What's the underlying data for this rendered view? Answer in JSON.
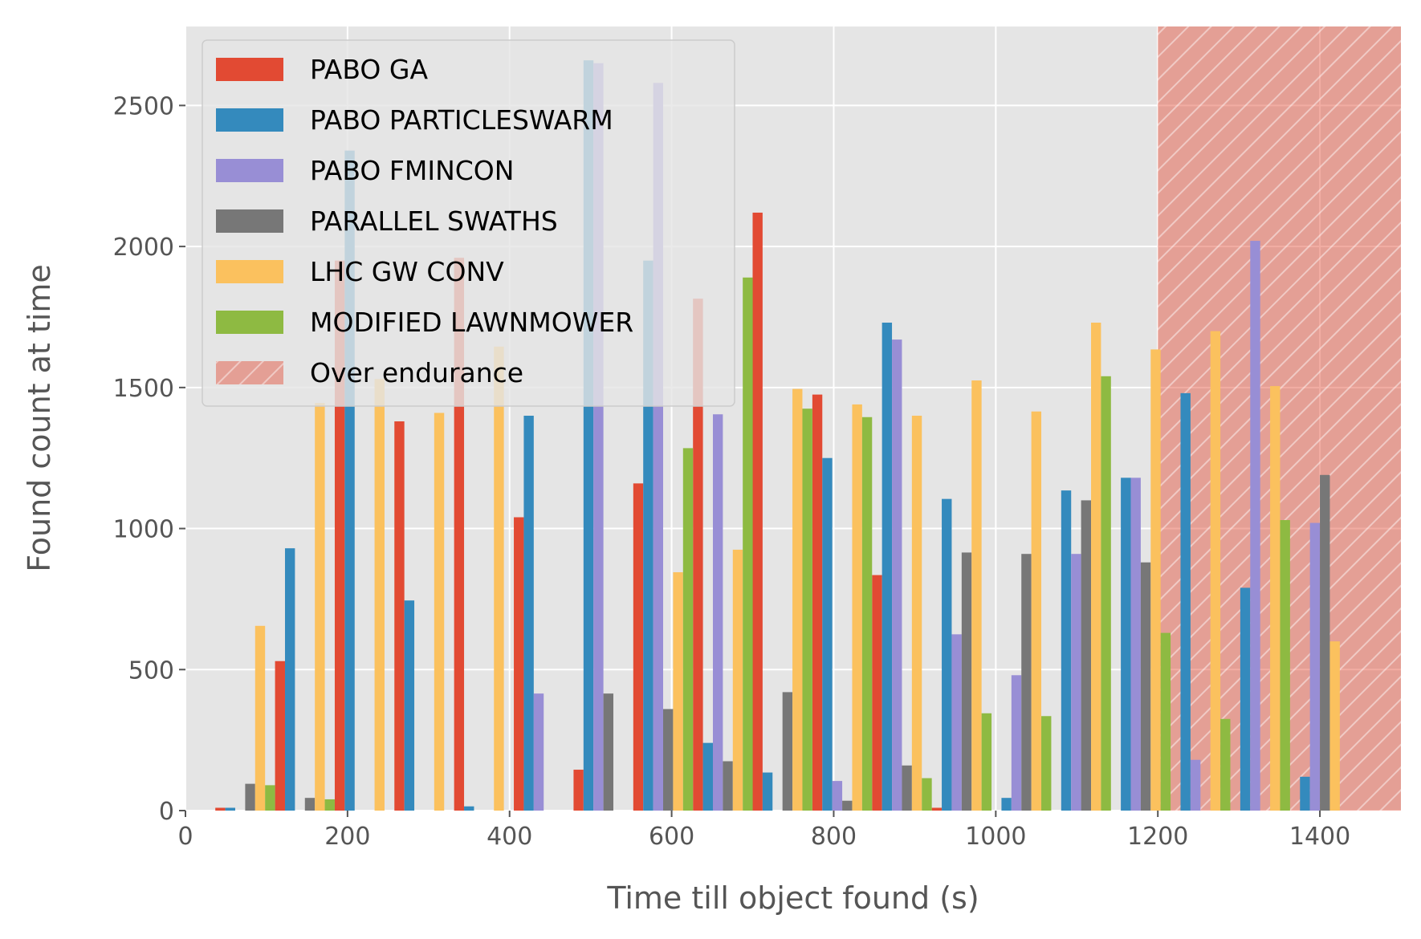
{
  "chart_data": {
    "type": "bar",
    "xlabel": "Time till object found (s)",
    "ylabel": "Found count at time",
    "xlim": [
      0,
      1500
    ],
    "ylim": [
      0,
      2780
    ],
    "xticks": [
      0,
      200,
      400,
      600,
      800,
      1000,
      1200,
      1400
    ],
    "yticks": [
      0,
      500,
      1000,
      1500,
      2000,
      2500
    ],
    "grid": true,
    "legend_position": "top-left",
    "bin_width": 73.7,
    "bin_centers": [
      73.7,
      147.4,
      221.1,
      294.7,
      368.4,
      442.1,
      515.8,
      589.5,
      663.2,
      736.8,
      810.5,
      884.2,
      957.9,
      1031.6,
      1105.3,
      1178.9,
      1252.6,
      1326.3,
      1400.0,
      1473.7
    ],
    "series": [
      {
        "name": "PABO GA",
        "color": "#E24A33",
        "values": [
          10,
          530,
          1950,
          1380,
          1960,
          1040,
          145,
          1160,
          1815,
          2120,
          1475,
          835,
          10,
          0,
          0,
          0,
          0,
          0,
          0,
          0
        ]
      },
      {
        "name": "PABO PARTICLESWARM",
        "color": "#348ABD",
        "values": [
          10,
          930,
          2340,
          745,
          15,
          1400,
          2660,
          1950,
          240,
          135,
          1250,
          1730,
          1105,
          45,
          1135,
          1180,
          1480,
          790,
          120,
          0
        ]
      },
      {
        "name": "PABO FMINCON",
        "color": "#988ED5",
        "values": [
          0,
          0,
          0,
          0,
          0,
          415,
          2650,
          2580,
          1405,
          0,
          105,
          1670,
          625,
          480,
          910,
          1180,
          180,
          2020,
          1020,
          0
        ]
      },
      {
        "name": "PARALLEL SWATHS",
        "color": "#777777",
        "values": [
          95,
          45,
          0,
          0,
          0,
          0,
          415,
          360,
          175,
          420,
          35,
          160,
          915,
          910,
          1100,
          880,
          0,
          0,
          1190,
          0
        ]
      },
      {
        "name": "LHC GW CONV",
        "color": "#FBC15E",
        "values": [
          655,
          1445,
          1530,
          1410,
          1645,
          0,
          0,
          845,
          925,
          1495,
          1440,
          1400,
          1525,
          1415,
          1730,
          1635,
          1700,
          1505,
          600,
          0
        ]
      },
      {
        "name": "MODIFIED LAWNMOWER",
        "color": "#8EBA42",
        "values": [
          90,
          40,
          0,
          0,
          0,
          0,
          0,
          1285,
          1890,
          1425,
          1395,
          115,
          345,
          335,
          1540,
          630,
          325,
          1030,
          0,
          0
        ]
      }
    ],
    "shaded_region": {
      "name": "Over endurance",
      "x_start": 1200,
      "x_end": 1500,
      "color": "#E24A33"
    }
  }
}
